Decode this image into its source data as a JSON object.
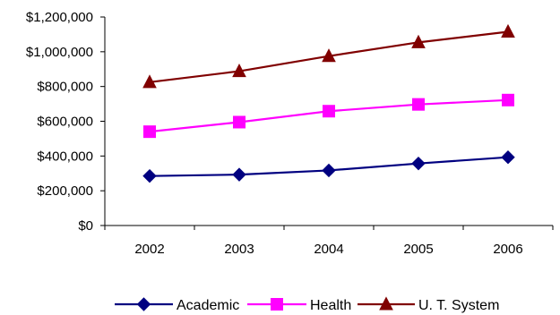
{
  "chart_data": {
    "type": "line",
    "categories": [
      "2002",
      "2003",
      "2004",
      "2005",
      "2006"
    ],
    "ylim": [
      0,
      1200000
    ],
    "ytick_step": 200000,
    "ytick_labels": [
      "$0",
      "$200,000",
      "$400,000",
      "$600,000",
      "$800,000",
      "$1,000,000",
      "$1,200,000"
    ],
    "grid": false,
    "legend_position": "bottom",
    "series": [
      {
        "name": "Academic",
        "color": "#000080",
        "marker": "diamond",
        "values": [
          285000,
          293000,
          317000,
          357000,
          393000
        ]
      },
      {
        "name": "Health",
        "color": "#ff00ff",
        "marker": "square",
        "values": [
          540000,
          595000,
          658000,
          697000,
          722000
        ]
      },
      {
        "name": "U. T. System",
        "color": "#800000",
        "marker": "triangle",
        "values": [
          825000,
          888000,
          975000,
          1054000,
          1115000
        ]
      }
    ]
  }
}
